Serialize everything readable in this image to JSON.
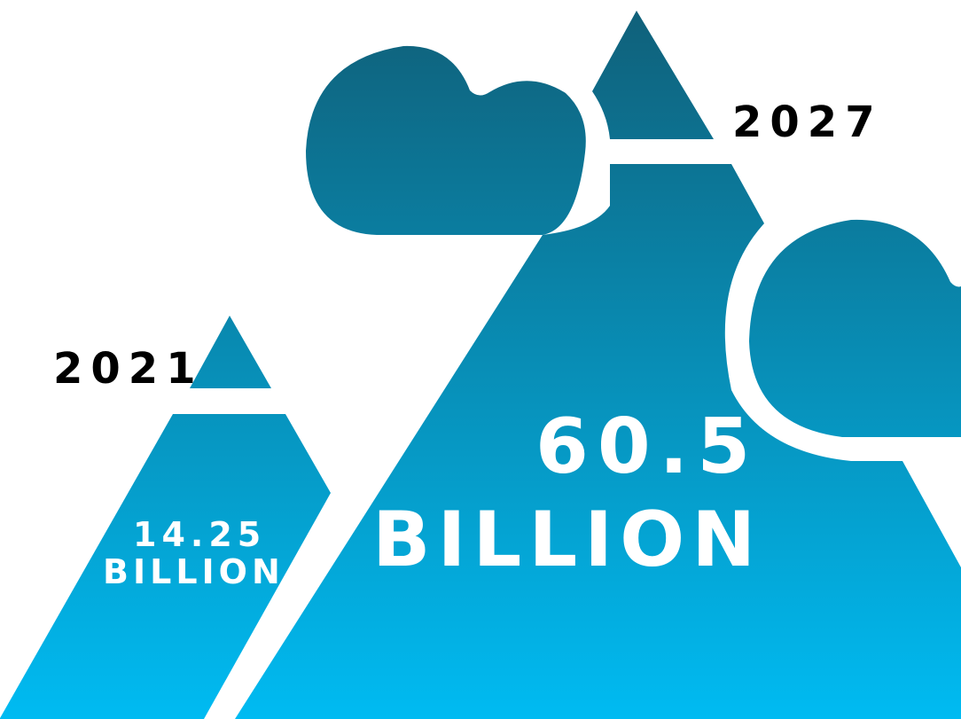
{
  "colors": {
    "gradient_top": "#105f78",
    "gradient_bottom": "#00bbf2",
    "year_text": "#000000",
    "value_text": "#ffffff",
    "background": "#ffffff"
  },
  "large_peak": {
    "year": "2027",
    "value": "60.5",
    "unit": "BILLION"
  },
  "small_peak": {
    "year": "2021",
    "value": "14.25",
    "unit": "BILLION"
  }
}
